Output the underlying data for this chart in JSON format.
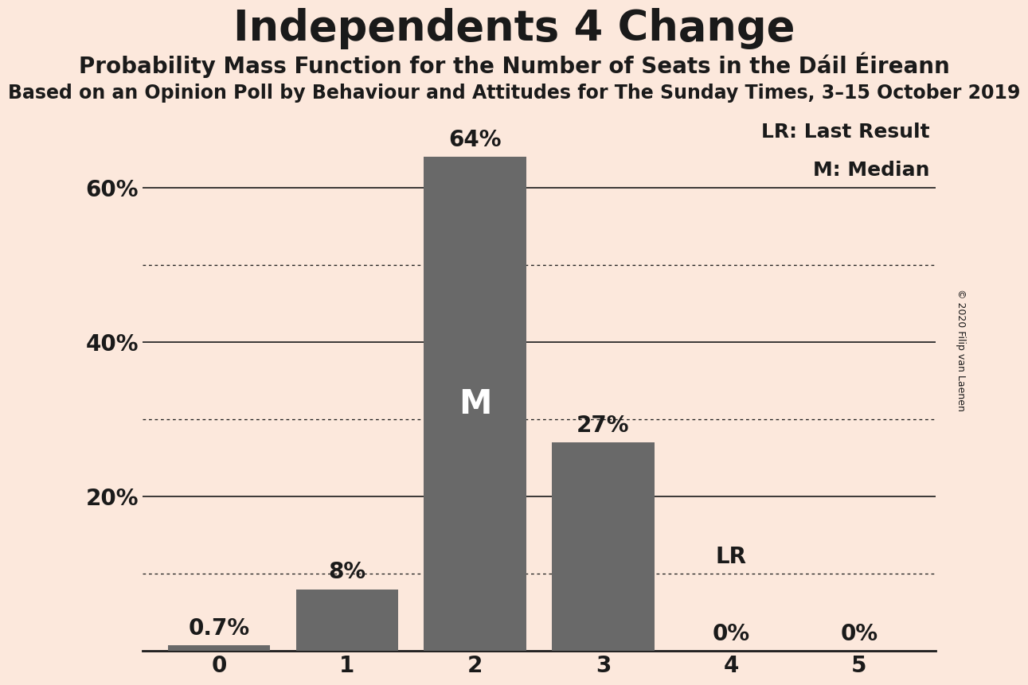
{
  "title": "Independents 4 Change",
  "subtitle": "Probability Mass Function for the Number of Seats in the Dáil Éireann",
  "subtitle2": "Based on an Opinion Poll by Behaviour and Attitudes for The Sunday Times, 3–15 October 2019",
  "copyright": "© 2020 Filip van Laenen",
  "categories": [
    0,
    1,
    2,
    3,
    4,
    5
  ],
  "values": [
    0.7,
    8.0,
    64.0,
    27.0,
    0.0,
    0.0
  ],
  "bar_color": "#696969",
  "background_color": "#fce8dc",
  "text_color": "#1a1a1a",
  "ylim": [
    0,
    70
  ],
  "yticks": [
    20,
    40,
    60
  ],
  "ytick_labels": [
    "20%",
    "40%",
    "60%"
  ],
  "solid_gridlines": [
    20,
    40,
    60
  ],
  "dotted_gridlines": [
    10,
    30,
    50
  ],
  "median_bar": 2,
  "lr_bar": 4,
  "legend_lr": "LR: Last Result",
  "legend_m": "M: Median",
  "bar_label_fontsize": 20,
  "axis_fontsize": 20,
  "title_fontsize": 38,
  "subtitle_fontsize": 20,
  "subtitle2_fontsize": 17
}
